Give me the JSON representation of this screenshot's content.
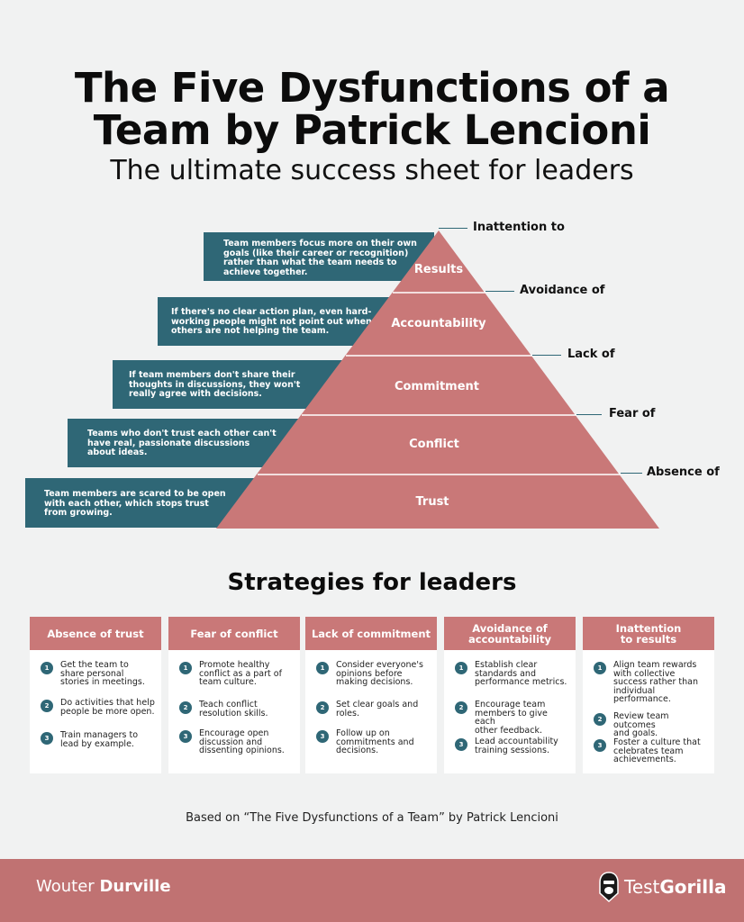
{
  "header": {
    "title_line1": "The Five Dysfunctions of a",
    "title_line2": "Team by Patrick Lencioni",
    "subtitle": "The ultimate success sheet for leaders"
  },
  "pyramid": {
    "levels": [
      {
        "label": "Results",
        "side_label": "Inattention to",
        "description": [
          "Team members focus more on their own",
          "goals (like their career or recognition)",
          "rather than what the team needs to",
          "achieve together."
        ]
      },
      {
        "label": "Accountability",
        "side_label": "Avoidance of",
        "description": [
          "If there's no clear action plan, even hard-",
          "working people might not point out when",
          "others are not helping the team."
        ]
      },
      {
        "label": "Commitment",
        "side_label": "Lack of",
        "description": [
          "If team members don't share their",
          "thoughts in discussions, they won't",
          "really agree with decisions."
        ]
      },
      {
        "label": "Conflict",
        "side_label": "Fear of",
        "description": [
          "Teams who don't trust each other can't",
          "have real, passionate discussions",
          "about ideas."
        ]
      },
      {
        "label": "Trust",
        "side_label": "Absence of",
        "description": [
          "Team members are scared to be open",
          "with each other, which stops trust",
          "from growing."
        ]
      }
    ]
  },
  "strategies": {
    "title": "Strategies for leaders",
    "cards": [
      {
        "heading": "Absence of trust",
        "items": [
          {
            "num": "1",
            "lines": [
              "Get the team to",
              "share personal",
              "stories in meetings."
            ]
          },
          {
            "num": "2",
            "lines": [
              "Do activities that help",
              "people be more open."
            ]
          },
          {
            "num": "3",
            "lines": [
              "Train managers to",
              "lead by example."
            ]
          }
        ]
      },
      {
        "heading": "Fear of conflict",
        "items": [
          {
            "num": "1",
            "lines": [
              "Promote healthy",
              "conflict as a part of",
              "team culture."
            ]
          },
          {
            "num": "2",
            "lines": [
              "Teach conflict",
              "resolution skills."
            ]
          },
          {
            "num": "3",
            "lines": [
              "Encourage open",
              "discussion and",
              "dissenting opinions."
            ]
          }
        ]
      },
      {
        "heading": "Lack of commitment",
        "items": [
          {
            "num": "1",
            "lines": [
              "Consider everyone's",
              "opinions before",
              "making decisions."
            ]
          },
          {
            "num": "2",
            "lines": [
              "Set clear goals and",
              "roles."
            ]
          },
          {
            "num": "3",
            "lines": [
              "Follow up on",
              "commitments and",
              "decisions."
            ]
          }
        ]
      },
      {
        "heading": "Avoidance of accountability",
        "items": [
          {
            "num": "1",
            "lines": [
              "Establish clear",
              "standards and",
              "performance metrics."
            ]
          },
          {
            "num": "2",
            "lines": [
              "Encourage team",
              "members to give each",
              "other feedback."
            ]
          },
          {
            "num": "3",
            "lines": [
              "Lead accountability",
              "training sessions."
            ]
          }
        ]
      },
      {
        "heading": "Inattention to results",
        "items": [
          {
            "num": "1",
            "lines": [
              "Align team rewards",
              "with collective",
              "success rather than",
              "individual",
              "performance."
            ]
          },
          {
            "num": "2",
            "lines": [
              "Review team outcomes",
              "and goals."
            ]
          },
          {
            "num": "3",
            "lines": [
              "Foster a culture that",
              "celebrates team",
              "achievements."
            ]
          }
        ]
      }
    ]
  },
  "based_on": "Based on “The Five Dysfunctions of a Team” by Patrick Lencioni",
  "footer": {
    "author_first": "Wouter",
    "author_last": "Durville",
    "brand_prefix": "Test",
    "brand_suffix": "Gorilla"
  },
  "colors": {
    "pyramid": "#c97878",
    "accent_teal": "#2f6776",
    "footer": "#c07272",
    "background": "#f1f2f2"
  }
}
